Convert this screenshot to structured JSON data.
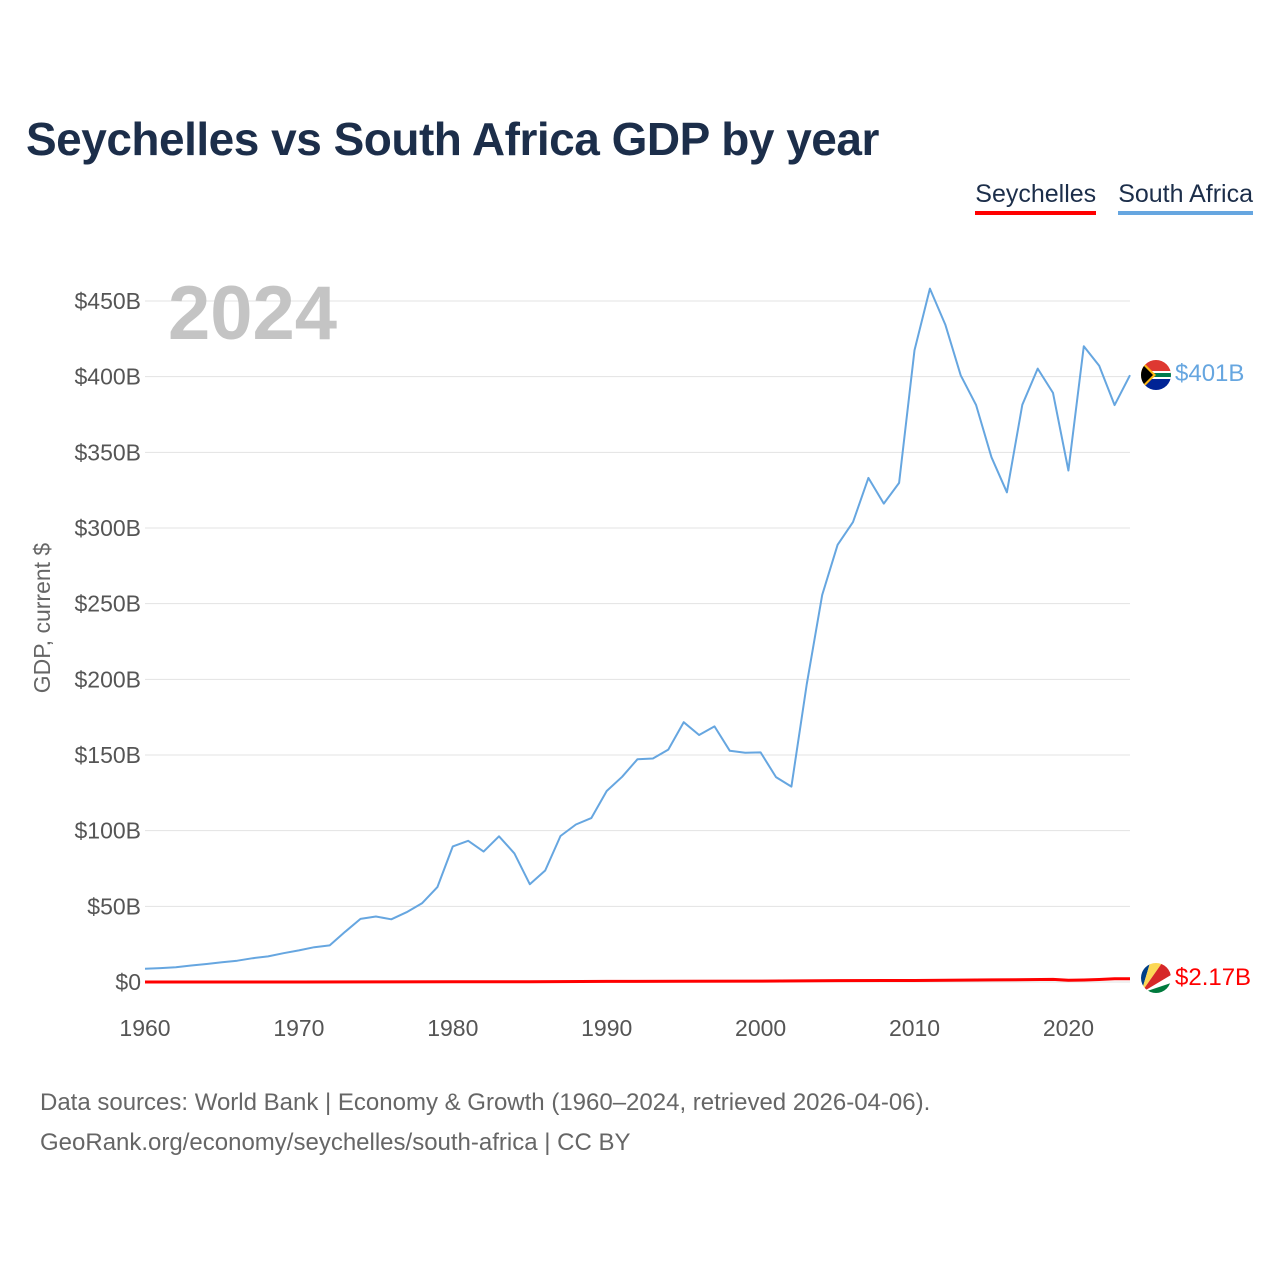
{
  "title": "Seychelles vs South Africa GDP by year",
  "legend": [
    {
      "label": "Seychelles",
      "color": "#ff0000"
    },
    {
      "label": "South Africa",
      "color": "#66a6e0"
    }
  ],
  "footer": {
    "line1": "Data sources: World Bank | Economy & Growth (1960–2024, retrieved 2026-04-06).",
    "line2": "GeoRank.org/economy/seychelles/south-africa | CC BY"
  },
  "chart_data": {
    "type": "line",
    "title": "Seychelles vs South Africa GDP by year",
    "ylabel": "GDP, current $",
    "xlabel": "",
    "year_label": "2024",
    "xlim": [
      1960,
      2024
    ],
    "ylim": [
      0,
      450
    ],
    "unit": "billions USD",
    "x_ticks": [
      1960,
      1970,
      1980,
      1990,
      2000,
      2010,
      2020
    ],
    "y_ticks": [
      {
        "value": 0,
        "label": "$0"
      },
      {
        "value": 50,
        "label": "$50B"
      },
      {
        "value": 100,
        "label": "$100B"
      },
      {
        "value": 150,
        "label": "$150B"
      },
      {
        "value": 200,
        "label": "$200B"
      },
      {
        "value": 250,
        "label": "$250B"
      },
      {
        "value": 300,
        "label": "$300B"
      },
      {
        "value": 350,
        "label": "$350B"
      },
      {
        "value": 400,
        "label": "$400B"
      },
      {
        "value": 450,
        "label": "$450B"
      }
    ],
    "grid": true,
    "series": [
      {
        "name": "South Africa",
        "color": "#66a6e0",
        "end_label": "$401B",
        "x": [
          1960,
          1961,
          1962,
          1963,
          1964,
          1965,
          1966,
          1967,
          1968,
          1969,
          1970,
          1971,
          1972,
          1973,
          1974,
          1975,
          1976,
          1977,
          1978,
          1979,
          1980,
          1981,
          1982,
          1983,
          1984,
          1985,
          1986,
          1987,
          1988,
          1989,
          1990,
          1991,
          1992,
          1993,
          1994,
          1995,
          1996,
          1997,
          1998,
          1999,
          2000,
          2001,
          2002,
          2003,
          2004,
          2005,
          2006,
          2007,
          2008,
          2009,
          2010,
          2011,
          2012,
          2013,
          2014,
          2015,
          2016,
          2017,
          2018,
          2019,
          2020,
          2021,
          2022,
          2023,
          2024
        ],
        "values": [
          8.7,
          9.2,
          9.8,
          10.9,
          11.9,
          13.0,
          14.1,
          15.7,
          16.9,
          19.0,
          20.9,
          23.0,
          24.2,
          33.2,
          41.7,
          43.3,
          41.4,
          46.1,
          52.0,
          62.7,
          89.6,
          93.3,
          86.2,
          96.3,
          85.0,
          64.6,
          73.7,
          96.5,
          104.1,
          108.3,
          126.2,
          135.6,
          147.2,
          147.7,
          153.6,
          171.7,
          163.2,
          168.9,
          152.8,
          151.5,
          151.7,
          135.4,
          129.1,
          197.0,
          255.8,
          288.9,
          303.9,
          333.1,
          316.1,
          329.8,
          417.4,
          458.2,
          434.4,
          400.9,
          381.2,
          346.7,
          323.6,
          381.4,
          405.3,
          389.3,
          338.0,
          420.1,
          407.2,
          381.2,
          401.0
        ]
      },
      {
        "name": "Seychelles",
        "color": "#ff0000",
        "end_label": "$2.17B",
        "x": [
          1960,
          1965,
          1970,
          1975,
          1980,
          1985,
          1990,
          1995,
          2000,
          2005,
          2008,
          2010,
          2015,
          2019,
          2020,
          2021,
          2022,
          2023,
          2024
        ],
        "values": [
          0.01,
          0.02,
          0.03,
          0.08,
          0.15,
          0.17,
          0.37,
          0.51,
          0.61,
          0.92,
          0.97,
          0.97,
          1.38,
          1.7,
          1.2,
          1.29,
          1.68,
          2.14,
          2.17
        ]
      }
    ]
  }
}
